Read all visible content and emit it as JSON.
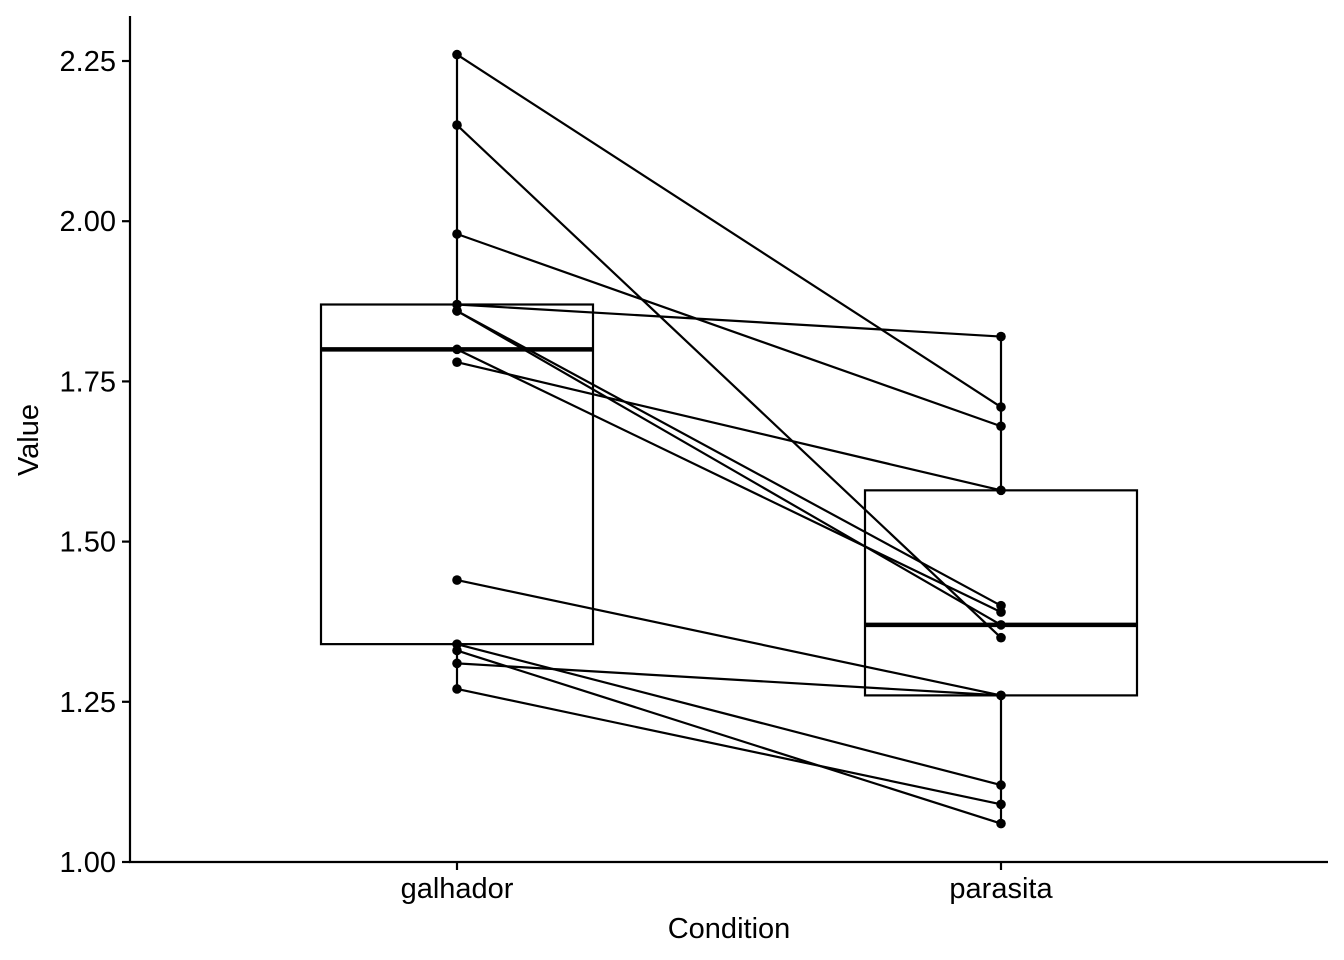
{
  "chart_data": {
    "type": "boxplot",
    "xlabel": "Condition",
    "ylabel": "Value",
    "categories": [
      "galhador",
      "parasita"
    ],
    "ylim": [
      1.0,
      2.25
    ],
    "yticks": [
      "1.00",
      "1.25",
      "1.50",
      "1.75",
      "2.00",
      "2.25"
    ],
    "grid": false,
    "boxes": [
      {
        "category": "galhador",
        "q1": 1.34,
        "median": 1.8,
        "q3": 1.87,
        "whisker_low": 1.27,
        "whisker_high": 2.26
      },
      {
        "category": "parasita",
        "q1": 1.26,
        "median": 1.37,
        "q3": 1.58,
        "whisker_low": 1.06,
        "whisker_high": 1.82
      }
    ],
    "pairs": [
      {
        "galhador": 2.26,
        "parasita": 1.71
      },
      {
        "galhador": 2.15,
        "parasita": 1.35
      },
      {
        "galhador": 1.98,
        "parasita": 1.68
      },
      {
        "galhador": 1.87,
        "parasita": 1.82
      },
      {
        "galhador": 1.86,
        "parasita": 1.4
      },
      {
        "galhador": 1.86,
        "parasita": 1.37
      },
      {
        "galhador": 1.8,
        "parasita": 1.39
      },
      {
        "galhador": 1.78,
        "parasita": 1.58
      },
      {
        "galhador": 1.44,
        "parasita": 1.26
      },
      {
        "galhador": 1.34,
        "parasita": 1.12
      },
      {
        "galhador": 1.33,
        "parasita": 1.06
      },
      {
        "galhador": 1.31,
        "parasita": 1.26
      },
      {
        "galhador": 1.27,
        "parasita": 1.09
      }
    ]
  }
}
